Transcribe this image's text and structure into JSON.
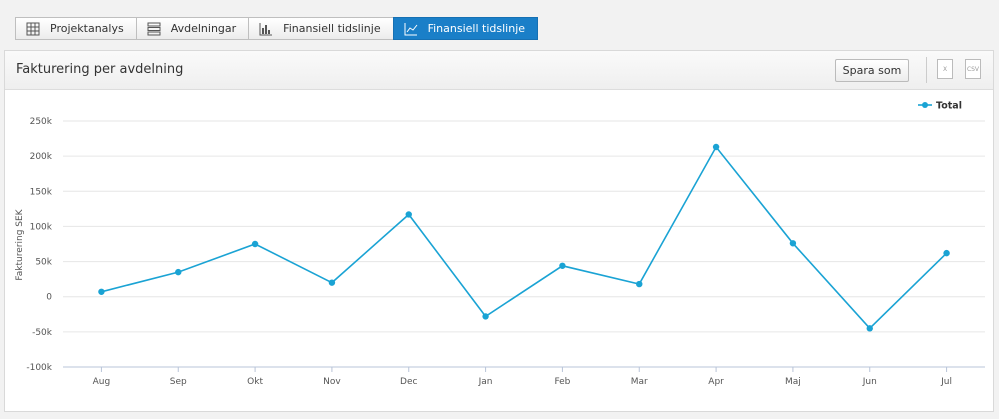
{
  "tabs": [
    "Projektanalys",
    "Avdelningar",
    "Finansiell tidslinje",
    "Finansiell tidslinje"
  ],
  "active_tab": 3,
  "panel": {
    "title": "Fakturering per avdelning",
    "button": "Spara som",
    "export_icons": [
      "X",
      "CSV"
    ]
  },
  "chart_data": {
    "type": "line",
    "categories": [
      "Aug",
      "Sep",
      "Okt",
      "Nov",
      "Dec",
      "Jan",
      "Feb",
      "Mar",
      "Apr",
      "Maj",
      "Jun",
      "Jul"
    ],
    "series": [
      {
        "name": "Total",
        "color": "#1aa3d4",
        "values": [
          7000,
          35000,
          75000,
          20000,
          117000,
          -28000,
          44000,
          18000,
          213000,
          76000,
          -45000,
          62000
        ]
      }
    ],
    "y_label": "Fakturering SEK",
    "ylim": [
      -100000,
      250000
    ],
    "yticks": [
      {
        "value": -100000,
        "label": "-100k"
      },
      {
        "value": -50000,
        "label": "-50k"
      },
      0,
      {
        "value": 50000,
        "label": "50k"
      },
      {
        "value": 100000,
        "label": "100k"
      },
      {
        "value": 150000,
        "label": "150k"
      },
      {
        "value": 200000,
        "label": "200k"
      },
      {
        "value": 250000,
        "label": "250k"
      }
    ],
    "grid": true,
    "legend": "top-right"
  }
}
